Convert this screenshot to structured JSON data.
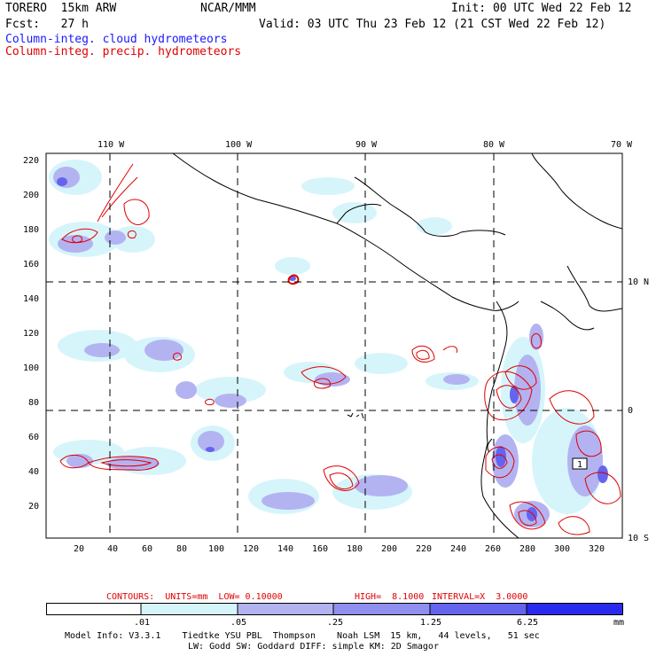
{
  "header": {
    "model": "TORERO  15km ARW",
    "center": "NCAR/MMM",
    "init": "Init: 00 UTC Wed 22 Feb 12",
    "fcst": "Fcst:   27 h",
    "valid": "Valid: 03 UTC Thu 23 Feb 12 (21 CST Wed 22 Feb 12)",
    "field1": "Column-integ. cloud hydrometeors",
    "field2": "Column-integ. precip. hydrometeors",
    "field1_color": "#1a1aff",
    "field2_color": "#e00000"
  },
  "map": {
    "lon_labels": [
      "110 W",
      "100 W",
      "90 W",
      "80 W",
      "70 W"
    ],
    "lat_labels": [
      "10 N",
      "0",
      "10 S"
    ],
    "y_ticks": [
      "220",
      "200",
      "180",
      "160",
      "140",
      "120",
      "100",
      "80",
      "60",
      "40",
      "20"
    ],
    "x_ticks": [
      "20",
      "40",
      "60",
      "80",
      "100",
      "120",
      "140",
      "160",
      "180",
      "200",
      "220",
      "240",
      "260",
      "280",
      "300",
      "320"
    ],
    "contour_box_label": "1"
  },
  "contours_line": {
    "prefix": "CONTOURS:  UNITS=mm  LOW= 0.10000",
    "high": "HIGH=  8.1000",
    "interval": "INTERVAL=X  3.0000"
  },
  "colorbar": {
    "labels": [
      ".01",
      ".05",
      ".25",
      "1.25",
      "6.25"
    ],
    "unit": "mm",
    "colors": [
      "#ffffff",
      "#d6f5fb",
      "#b3b3f2",
      "#8f8ff0",
      "#6464ee",
      "#2a2aee"
    ]
  },
  "footer": {
    "line1": "Model Info: V3.3.1    Tiedtke YSU PBL  Thompson    Noah LSM  15 km,   44 levels,   51 sec",
    "line2": "LW: Godd SW: Goddard DIFF: simple KM: 2D Smagor"
  }
}
